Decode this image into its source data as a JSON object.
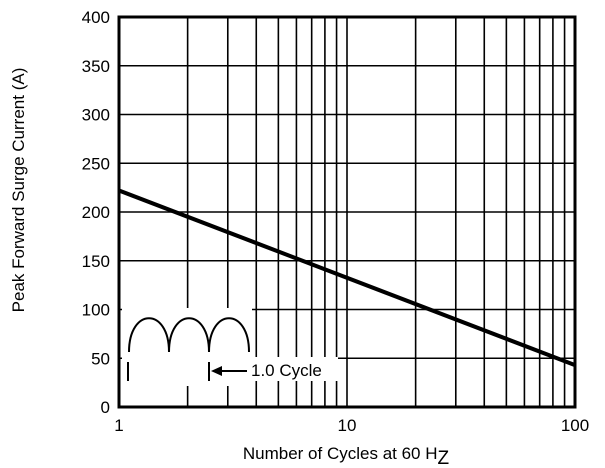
{
  "chart_data": {
    "type": "line",
    "xscale": "log",
    "xlim": [
      1,
      100
    ],
    "ylim": [
      0,
      400
    ],
    "grid": true,
    "xlabel": "Number of Cycles at 60 H",
    "xlabel_subscript": "Z",
    "ylabel": "Peak Forward Surge Current (A)",
    "x_ticks": [
      {
        "value": 1,
        "label": "1"
      },
      {
        "value": 10,
        "label": "10"
      },
      {
        "value": 100,
        "label": "100"
      }
    ],
    "y_ticks": [
      {
        "value": 0,
        "label": "0"
      },
      {
        "value": 50,
        "label": "50"
      },
      {
        "value": 100,
        "label": "100"
      },
      {
        "value": 150,
        "label": "150"
      },
      {
        "value": 200,
        "label": "200"
      },
      {
        "value": 250,
        "label": "250"
      },
      {
        "value": 300,
        "label": "300"
      },
      {
        "value": 350,
        "label": "350"
      },
      {
        "value": 400,
        "label": "400"
      }
    ],
    "series": [
      {
        "x": [
          1,
          100
        ],
        "y": [
          222,
          43
        ]
      }
    ],
    "inset": {
      "label": "1.0 Cycle",
      "arches": 3
    }
  }
}
